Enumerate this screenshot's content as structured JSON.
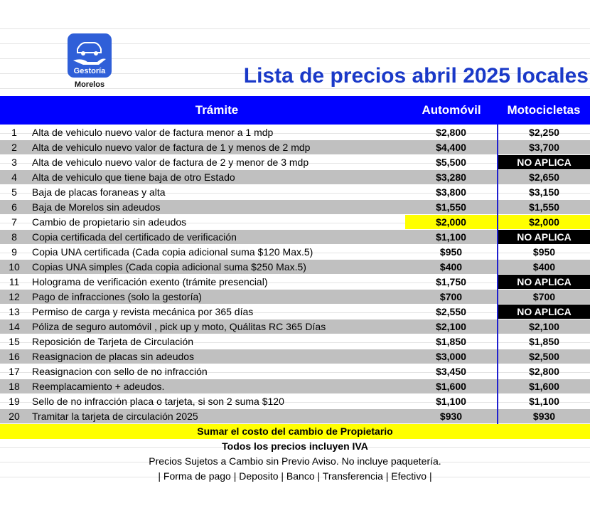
{
  "logo": {
    "name": "Gestoría",
    "city": "Morelos"
  },
  "title": "Lista de precios abril 2025 locales",
  "table": {
    "header": [
      "Trámite",
      "Automóvil",
      "Motocicletas"
    ],
    "header_fill": "#0000ff",
    "stripe_fill": "#c0c0c0",
    "rows": [
      {
        "no": "1",
        "tramite": "Alta de vehiculo nuevo valor de factura menor a 1 mdp",
        "auto": "$2,800",
        "moto": "$2,250"
      },
      {
        "no": "2",
        "tramite": "Alta de vehiculo nuevo valor de factura de 1 y menos de 2 mdp",
        "auto": "$4,400",
        "moto": "$3,700"
      },
      {
        "no": "3",
        "tramite": "Alta de vehiculo nuevo valor de factura de 2 y menor de 3 mdp",
        "auto": "$5,500",
        "moto": "NO APLICA",
        "moto_fill": "#000000"
      },
      {
        "no": "4",
        "tramite": "Alta de vehiculo que tiene baja de otro Estado",
        "auto": "$3,280",
        "moto": "$2,650"
      },
      {
        "no": "5",
        "tramite": "Baja de placas foraneas y alta",
        "auto": "$3,800",
        "moto": "$3,150"
      },
      {
        "no": "6",
        "tramite": "Baja de Morelos sin adeudos",
        "auto": "$1,550",
        "moto": "$1,550"
      },
      {
        "no": "7",
        "tramite": "Cambio de propietario sin adeudos",
        "auto": "$2,000",
        "moto": "$2,000",
        "auto_fill": "#ffff00",
        "moto_fill": "#ffff00"
      },
      {
        "no": "8",
        "tramite": "Copia certificada del certificado de verificación",
        "auto": "$1,100",
        "moto": "NO APLICA",
        "moto_fill": "#000000"
      },
      {
        "no": "9",
        "tramite": "Copia UNA certificada (Cada copia adicional suma $120 Max.5)",
        "auto": "$950",
        "moto": "$950"
      },
      {
        "no": "10",
        "tramite": "Copias UNA simples (Cada copia adicional suma $250 Max.5)",
        "auto": "$400",
        "moto": "$400"
      },
      {
        "no": "11",
        "tramite": "Holograma de verificación exento (trámite presencial)",
        "auto": "$1,750",
        "moto": "NO APLICA",
        "moto_fill": "#000000"
      },
      {
        "no": "12",
        "tramite": "Pago de infracciones (solo la gestoría)",
        "auto": "$700",
        "moto": "$700"
      },
      {
        "no": "13",
        "tramite": "Permiso de carga y revista mecánica por 365 días",
        "auto": "$2,550",
        "moto": "NO APLICA",
        "moto_fill": "#000000"
      },
      {
        "no": "14",
        "tramite": "Póliza de seguro automóvil , pick up y moto, Quálitas RC 365 Días",
        "auto": "$2,100",
        "moto": "$2,100"
      },
      {
        "no": "15",
        "tramite": "Reposición de Tarjeta de Circulación",
        "auto": "$1,850",
        "moto": "$1,850"
      },
      {
        "no": "16",
        "tramite": "Reasignacion de placas sin adeudos",
        "auto": "$3,000",
        "moto": "$2,500"
      },
      {
        "no": "17",
        "tramite": "Reasignacion con sello de no infracción",
        "auto": "$3,450",
        "moto": "$2,800"
      },
      {
        "no": "18",
        "tramite": "Reemplacamiento + adeudos.",
        "auto": "$1,600",
        "moto": "$1,600"
      },
      {
        "no": "19",
        "tramite": "Sello de no infracción placa o tarjeta, si son 2 suma $120",
        "auto": "$1,100",
        "moto": "$1,100"
      },
      {
        "no": "20",
        "tramite": "Tramitar la tarjeta de circulación 2025",
        "auto": "$930",
        "moto": "$930"
      }
    ]
  },
  "footer": [
    {
      "text": "Sumar el costo del cambio de Propietario",
      "fill": "#ffff00",
      "bold": true
    },
    {
      "text": "Todos los precios incluyen IVA",
      "bold": true
    },
    {
      "text": "Precios Sujetos a Cambio sin Previo Aviso. No incluye paquetería."
    },
    {
      "text": "| Forma de pago | Deposito | Banco | Transferencia | Efectivo |"
    }
  ]
}
